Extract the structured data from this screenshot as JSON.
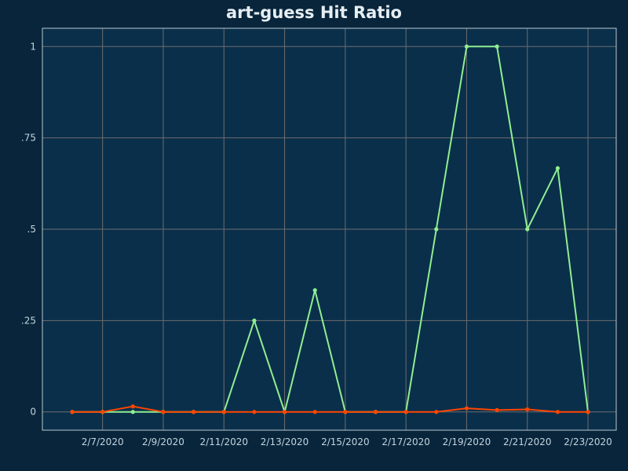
{
  "chart_data": {
    "type": "line",
    "title": "art-guess Hit Ratio",
    "xlabel": "",
    "ylabel": "",
    "x": [
      "2/6/2020",
      "2/7/2020",
      "2/8/2020",
      "2/9/2020",
      "2/10/2020",
      "2/11/2020",
      "2/12/2020",
      "2/13/2020",
      "2/14/2020",
      "2/15/2020",
      "2/16/2020",
      "2/17/2020",
      "2/18/2020",
      "2/19/2020",
      "2/20/2020",
      "2/21/2020",
      "2/22/2020",
      "2/23/2020"
    ],
    "x_tick_labels": [
      "2/7/2020",
      "2/9/2020",
      "2/11/2020",
      "2/13/2020",
      "2/15/2020",
      "2/17/2020",
      "2/19/2020",
      "2/21/2020",
      "2/23/2020"
    ],
    "y_ticks": [
      0,
      0.25,
      0.5,
      0.75,
      1
    ],
    "y_tick_labels": [
      "0",
      ".25",
      ".5",
      ".75",
      "1"
    ],
    "ylim": [
      -0.05,
      1.05
    ],
    "grid": true,
    "series": [
      {
        "color": "#90ee90",
        "values": [
          0,
          0,
          0,
          0,
          0,
          0,
          0.25,
          0,
          0.333,
          0,
          0,
          0,
          0.5,
          1,
          1,
          0.5,
          0.667,
          0
        ]
      },
      {
        "color": "#ff4500",
        "values": [
          0,
          0,
          0.015,
          0,
          0,
          0,
          0,
          0,
          0,
          0,
          0,
          0,
          0,
          0.01,
          0.005,
          0.007,
          0,
          0
        ]
      }
    ],
    "colors": {
      "page_background": "#08253b",
      "plot_background": "#0a2f4b",
      "grid": "#6d6d6d",
      "frame": "#b8c8d0",
      "text": "#c3d3de"
    }
  }
}
